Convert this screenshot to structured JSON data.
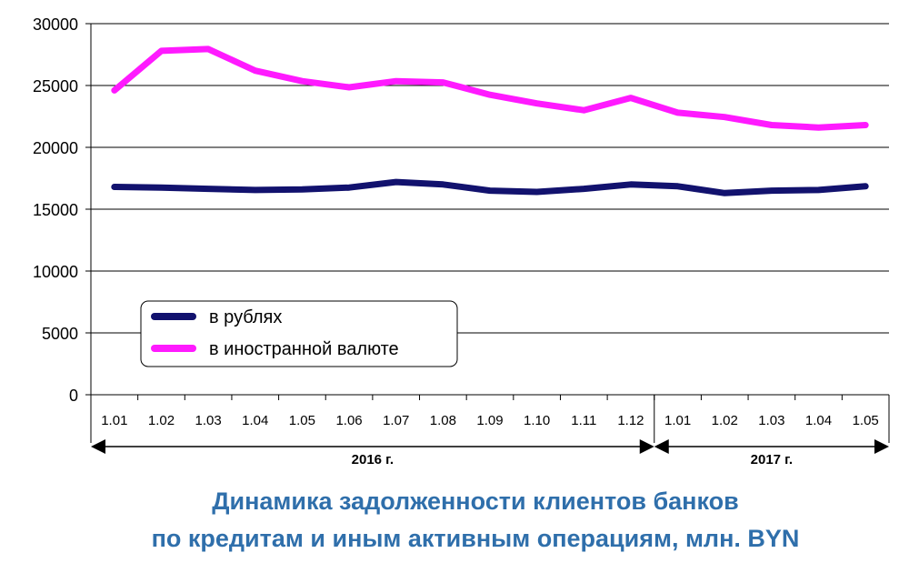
{
  "chart_data": {
    "type": "line",
    "title_lines": [
      "Динамика задолженности клиентов банков",
      "по кредитам и иным активным операциям, млн. BYN"
    ],
    "xlabel": "",
    "ylabel": "",
    "categories": [
      "1.01",
      "1.02",
      "1.03",
      "1.04",
      "1.05",
      "1.06",
      "1.07",
      "1.08",
      "1.09",
      "1.10",
      "1.11",
      "1.12",
      "1.01",
      "1.02",
      "1.03",
      "1.04",
      "1.05"
    ],
    "year_groups": [
      {
        "label": "2016 г.",
        "from": 0,
        "to": 11
      },
      {
        "label": "2017 г.",
        "from": 12,
        "to": 16
      }
    ],
    "ylim": [
      0,
      30000
    ],
    "yticks": [
      "0",
      "5000",
      "10000",
      "15000",
      "20000",
      "25000",
      "30000"
    ],
    "grid": true,
    "legend_position": "center-left",
    "series": [
      {
        "name": "в рублях",
        "color": "#12126e",
        "values": [
          16800,
          16750,
          16650,
          16550,
          16600,
          16750,
          17200,
          17000,
          16500,
          16400,
          16650,
          17000,
          16850,
          16300,
          16500,
          16550,
          16850
        ]
      },
      {
        "name": "в иностранной валюте",
        "color": "#ff1aff",
        "values": [
          24600,
          27800,
          27950,
          26200,
          25350,
          24850,
          25350,
          25250,
          24250,
          23550,
          23000,
          24000,
          22800,
          22450,
          21800,
          21600,
          21800
        ]
      }
    ]
  }
}
